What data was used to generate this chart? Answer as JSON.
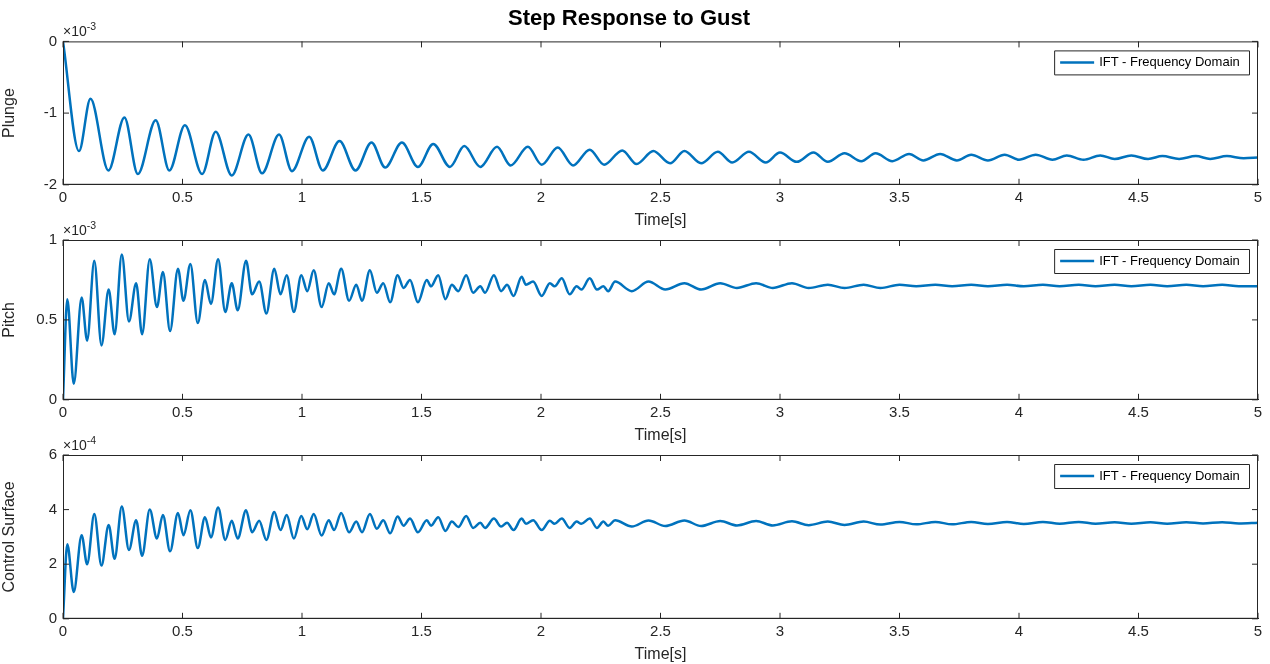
{
  "chart_data": [
    {
      "type": "line",
      "title": "Step Response to Gust",
      "xlabel": "Time[s]",
      "ylabel": "Plunge",
      "annotations": [
        "×10$^{-3}$"
      ],
      "legend": "top right",
      "grid": false,
      "xlim": [
        0,
        5
      ],
      "xticks": [
        0,
        0.5,
        1,
        1.5,
        2,
        2.5,
        3,
        3.5,
        4,
        4.5,
        5
      ],
      "ylim": [
        -2,
        0
      ],
      "yticks": [
        -2,
        -1,
        0
      ],
      "x": [
        0,
        0.067,
        0.115,
        0.19,
        0.257,
        0.313,
        0.388,
        0.445,
        0.51,
        0.582,
        0.639,
        0.706,
        0.776,
        0.833,
        0.904,
        0.958,
        1.03,
        1.087,
        1.157,
        1.224,
        1.291,
        1.348,
        1.418,
        1.485,
        1.549,
        1.619,
        1.679,
        1.746,
        1.816,
        1.873,
        1.945,
        2.003,
        2.07,
        2.134,
        2.204,
        2.264,
        2.34,
        2.4,
        2.47,
        2.54,
        2.6,
        2.67,
        2.74,
        2.8,
        2.87,
        2.94,
        3.0,
        3.07,
        3.14,
        3.2,
        3.27,
        3.34,
        3.4,
        3.47,
        3.54,
        3.6,
        3.67,
        3.74,
        3.8,
        3.87,
        3.94,
        4.0,
        4.07,
        4.14,
        4.2,
        4.27,
        4.34,
        4.4,
        4.47,
        4.54,
        4.6,
        4.67,
        4.74,
        4.8,
        4.87,
        4.94,
        5.0
      ],
      "series": [
        {
          "name": "IFT - Frequency Domain",
          "color": "#0072bd",
          "values": [
            0,
            -1.53,
            -0.8,
            -1.8,
            -1.06,
            -1.85,
            -1.1,
            -1.8,
            -1.17,
            -1.85,
            -1.26,
            -1.87,
            -1.3,
            -1.84,
            -1.3,
            -1.81,
            -1.33,
            -1.8,
            -1.39,
            -1.8,
            -1.41,
            -1.76,
            -1.41,
            -1.75,
            -1.43,
            -1.75,
            -1.46,
            -1.75,
            -1.47,
            -1.73,
            -1.47,
            -1.72,
            -1.48,
            -1.73,
            -1.51,
            -1.72,
            -1.52,
            -1.71,
            -1.53,
            -1.7,
            -1.53,
            -1.7,
            -1.54,
            -1.69,
            -1.54,
            -1.69,
            -1.55,
            -1.68,
            -1.55,
            -1.68,
            -1.56,
            -1.67,
            -1.56,
            -1.67,
            -1.57,
            -1.66,
            -1.57,
            -1.66,
            -1.58,
            -1.66,
            -1.58,
            -1.65,
            -1.58,
            -1.65,
            -1.59,
            -1.65,
            -1.59,
            -1.64,
            -1.59,
            -1.64,
            -1.6,
            -1.64,
            -1.6,
            -1.64,
            -1.6,
            -1.63,
            -1.62
          ]
        }
      ]
    },
    {
      "type": "line",
      "xlabel": "Time[s]",
      "ylabel": "Pitch",
      "annotations": [
        "×10$^{-3}$"
      ],
      "legend": "top right",
      "grid": false,
      "xlim": [
        0,
        5
      ],
      "xticks": [
        0,
        0.5,
        1,
        1.5,
        2,
        2.5,
        3,
        3.5,
        4,
        4.5,
        5
      ],
      "ylim": [
        0,
        1
      ],
      "yticks": [
        0,
        0.5,
        1
      ],
      "x": [
        0,
        0.018,
        0.045,
        0.078,
        0.101,
        0.131,
        0.161,
        0.191,
        0.216,
        0.246,
        0.276,
        0.306,
        0.331,
        0.363,
        0.393,
        0.418,
        0.448,
        0.481,
        0.504,
        0.533,
        0.564,
        0.594,
        0.619,
        0.649,
        0.679,
        0.706,
        0.731,
        0.766,
        0.791,
        0.821,
        0.851,
        0.884,
        0.91,
        0.936,
        0.966,
        0.997,
        1.022,
        1.049,
        1.082,
        1.112,
        1.134,
        1.164,
        1.197,
        1.227,
        1.251,
        1.284,
        1.313,
        1.34,
        1.369,
        1.4,
        1.425,
        1.452,
        1.485,
        1.522,
        1.54,
        1.57,
        1.6,
        1.627,
        1.654,
        1.687,
        1.716,
        1.746,
        1.766,
        1.803,
        1.833,
        1.858,
        1.885,
        1.919,
        1.937,
        1.967,
        2.003,
        2.037,
        2.057,
        2.087,
        2.12,
        2.149,
        2.169,
        2.204,
        2.234,
        2.261,
        2.281,
        2.31,
        2.38,
        2.45,
        2.52,
        2.6,
        2.67,
        2.75,
        2.82,
        2.9,
        2.97,
        3.05,
        3.12,
        3.2,
        3.27,
        3.35,
        3.42,
        3.5,
        3.57,
        3.65,
        3.72,
        3.8,
        3.87,
        3.95,
        4.02,
        4.1,
        4.17,
        4.25,
        4.32,
        4.4,
        4.47,
        4.55,
        4.62,
        4.7,
        4.77,
        4.85,
        4.92,
        5.0
      ],
      "series": [
        {
          "name": "IFT - Frequency Domain",
          "color": "#0072bd",
          "values": [
            0,
            0.63,
            0.1,
            0.64,
            0.37,
            0.87,
            0.34,
            0.69,
            0.41,
            0.91,
            0.49,
            0.73,
            0.41,
            0.88,
            0.58,
            0.8,
            0.43,
            0.82,
            0.62,
            0.85,
            0.48,
            0.75,
            0.6,
            0.88,
            0.55,
            0.73,
            0.56,
            0.87,
            0.66,
            0.74,
            0.54,
            0.82,
            0.66,
            0.78,
            0.55,
            0.78,
            0.68,
            0.81,
            0.58,
            0.73,
            0.66,
            0.82,
            0.62,
            0.72,
            0.62,
            0.81,
            0.67,
            0.73,
            0.61,
            0.78,
            0.7,
            0.75,
            0.61,
            0.75,
            0.71,
            0.78,
            0.63,
            0.72,
            0.68,
            0.78,
            0.67,
            0.71,
            0.67,
            0.78,
            0.68,
            0.72,
            0.65,
            0.77,
            0.72,
            0.74,
            0.65,
            0.73,
            0.71,
            0.76,
            0.66,
            0.71,
            0.69,
            0.76,
            0.69,
            0.71,
            0.68,
            0.74,
            0.68,
            0.74,
            0.69,
            0.73,
            0.69,
            0.73,
            0.7,
            0.73,
            0.7,
            0.73,
            0.7,
            0.72,
            0.7,
            0.72,
            0.7,
            0.72,
            0.71,
            0.72,
            0.71,
            0.72,
            0.71,
            0.72,
            0.71,
            0.72,
            0.71,
            0.72,
            0.71,
            0.72,
            0.71,
            0.72,
            0.71,
            0.72,
            0.71,
            0.72,
            0.71,
            0.71
          ]
        }
      ]
    },
    {
      "type": "line",
      "xlabel": "Time[s]",
      "ylabel": "Control Surface",
      "annotations": [
        "×10$^{-4}$"
      ],
      "legend": "top right",
      "grid": false,
      "xlim": [
        0,
        5
      ],
      "xticks": [
        0,
        0.5,
        1,
        1.5,
        2,
        2.5,
        3,
        3.5,
        4,
        4.5,
        5
      ],
      "ylim": [
        0,
        6
      ],
      "yticks": [
        0,
        2,
        4,
        6
      ],
      "x": [
        0,
        0.018,
        0.045,
        0.078,
        0.101,
        0.131,
        0.161,
        0.191,
        0.216,
        0.246,
        0.276,
        0.306,
        0.331,
        0.363,
        0.393,
        0.418,
        0.448,
        0.481,
        0.504,
        0.533,
        0.564,
        0.594,
        0.619,
        0.649,
        0.679,
        0.706,
        0.731,
        0.766,
        0.791,
        0.821,
        0.851,
        0.884,
        0.91,
        0.936,
        0.966,
        0.997,
        1.022,
        1.049,
        1.082,
        1.112,
        1.134,
        1.164,
        1.197,
        1.227,
        1.251,
        1.284,
        1.313,
        1.34,
        1.369,
        1.4,
        1.425,
        1.452,
        1.485,
        1.522,
        1.54,
        1.57,
        1.6,
        1.627,
        1.654,
        1.687,
        1.716,
        1.746,
        1.766,
        1.803,
        1.833,
        1.858,
        1.885,
        1.919,
        1.937,
        1.967,
        2.003,
        2.037,
        2.057,
        2.087,
        2.12,
        2.149,
        2.169,
        2.204,
        2.234,
        2.261,
        2.281,
        2.31,
        2.38,
        2.45,
        2.52,
        2.6,
        2.67,
        2.75,
        2.82,
        2.9,
        2.97,
        3.05,
        3.12,
        3.2,
        3.27,
        3.35,
        3.42,
        3.5,
        3.57,
        3.65,
        3.72,
        3.8,
        3.87,
        3.95,
        4.02,
        4.1,
        4.17,
        4.25,
        4.32,
        4.4,
        4.47,
        4.55,
        4.62,
        4.7,
        4.77,
        4.85,
        4.92,
        5.0
      ],
      "series": [
        {
          "name": "IFT - Frequency Domain",
          "color": "#0072bd",
          "values": [
            0,
            2.73,
            0.98,
            3.06,
            2.0,
            3.84,
            1.95,
            3.44,
            2.2,
            4.11,
            2.52,
            3.61,
            2.31,
            4.0,
            2.94,
            3.8,
            2.47,
            3.88,
            3.06,
            3.98,
            2.59,
            3.72,
            2.98,
            4.08,
            2.89,
            3.59,
            2.94,
            3.98,
            3.17,
            3.59,
            2.89,
            3.91,
            3.25,
            3.8,
            2.94,
            3.77,
            3.28,
            3.84,
            3.05,
            3.61,
            3.25,
            3.88,
            3.17,
            3.56,
            3.17,
            3.84,
            3.3,
            3.61,
            3.13,
            3.75,
            3.41,
            3.67,
            3.17,
            3.61,
            3.41,
            3.72,
            3.22,
            3.56,
            3.36,
            3.77,
            3.33,
            3.52,
            3.33,
            3.67,
            3.38,
            3.52,
            3.25,
            3.67,
            3.48,
            3.61,
            3.25,
            3.59,
            3.48,
            3.67,
            3.33,
            3.56,
            3.48,
            3.67,
            3.33,
            3.56,
            3.41,
            3.61,
            3.38,
            3.6,
            3.4,
            3.6,
            3.4,
            3.58,
            3.42,
            3.58,
            3.42,
            3.57,
            3.43,
            3.56,
            3.44,
            3.56,
            3.45,
            3.55,
            3.46,
            3.55,
            3.46,
            3.55,
            3.47,
            3.55,
            3.47,
            3.55,
            3.48,
            3.55,
            3.48,
            3.54,
            3.48,
            3.54,
            3.48,
            3.54,
            3.49,
            3.54,
            3.49,
            3.52
          ]
        }
      ]
    }
  ]
}
